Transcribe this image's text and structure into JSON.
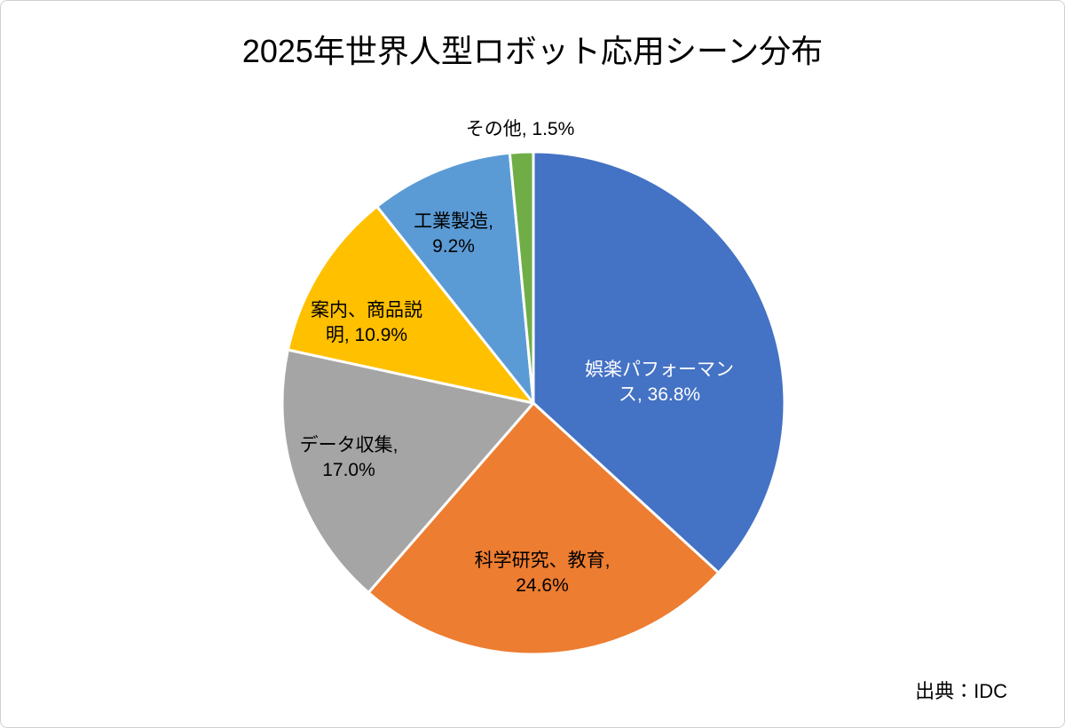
{
  "chart_data": {
    "type": "pie",
    "title": "2025年世界人型ロボット応用シーン分布",
    "values": [
      36.8,
      24.6,
      17.0,
      10.9,
      9.2,
      1.5
    ],
    "value_labels": [
      "娯楽パフォーマンス, 36.8%",
      "科学研究、教育, 24.6%",
      "データ収集, 17.0%",
      "案内、商品説明, 10.9%",
      "工業製造, 9.2%",
      "その他, 1.5%"
    ],
    "colors": [
      "#4472c4",
      "#ed7d31",
      "#a5a5a5",
      "#ffc000",
      "#5b9bd5",
      "#70ad47"
    ],
    "source": "出典：IDC"
  }
}
